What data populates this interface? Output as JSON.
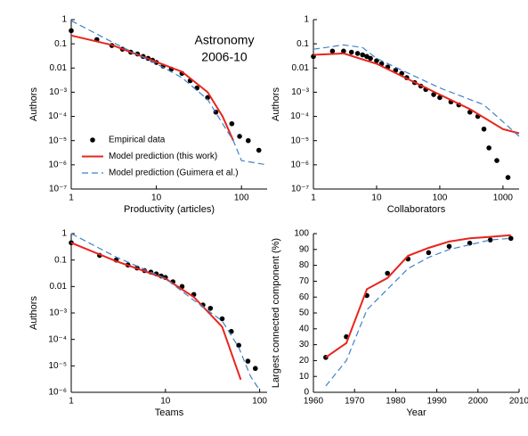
{
  "chart_data": [
    {
      "type": "line",
      "xscale": "log",
      "yscale": "log",
      "annotation": [
        "Astronomy",
        "2006-10"
      ],
      "xlabel": "Productivity (articles)",
      "ylabel": "Authors",
      "xlim": [
        1,
        200
      ],
      "ylim": [
        1e-07,
        1
      ],
      "xticks": [
        1,
        10,
        100
      ],
      "yticks": [
        1,
        0.1,
        0.01,
        {
          "value": 0.001,
          "label": "10⁻³"
        },
        {
          "value": 0.0001,
          "label": "10⁻⁴"
        },
        {
          "value": 1e-05,
          "label": "10⁻⁵"
        },
        {
          "value": 1e-06,
          "label": "10⁻⁶"
        },
        {
          "value": 1e-07,
          "label": "10⁻⁷"
        }
      ],
      "legend": "lower left",
      "series": [
        {
          "name": "Empirical data",
          "type": "scatter",
          "color": "#000000",
          "x": [
            1,
            2,
            3,
            4,
            5,
            6,
            7,
            8,
            9,
            10,
            12,
            15,
            20,
            25,
            30,
            40,
            50,
            77,
            95,
            120,
            160
          ],
          "values": [
            0.35,
            0.15,
            0.085,
            0.06,
            0.045,
            0.038,
            0.03,
            0.025,
            0.021,
            0.017,
            0.012,
            0.009,
            0.006,
            0.003,
            0.0015,
            0.0006,
            0.00015,
            5e-05,
            1.5e-05,
            1e-05,
            4e-06
          ]
        },
        {
          "name": "Model prediction (this work)",
          "type": "line",
          "color": "#e8251c",
          "dash": false,
          "x": [
            1,
            3,
            10,
            20,
            40,
            60,
            80
          ],
          "values": [
            0.22,
            0.09,
            0.018,
            0.007,
            0.001,
            0.0001,
            1e-05
          ]
        },
        {
          "name": "Model prediction (Guimera et al.)",
          "type": "line",
          "color": "#3f82c8",
          "dash": true,
          "x": [
            1,
            3,
            10,
            20,
            40,
            60,
            80,
            100,
            200
          ],
          "values": [
            0.9,
            0.12,
            0.015,
            0.004,
            0.0005,
            5e-05,
            1e-05,
            1.5e-06,
            1e-06
          ]
        }
      ]
    },
    {
      "type": "line",
      "xscale": "log",
      "yscale": "log",
      "xlabel": "Collaborators",
      "ylabel": "Authors",
      "xlim": [
        1,
        1800
      ],
      "ylim": [
        1e-07,
        1
      ],
      "xticks": [
        1,
        10,
        100,
        1000
      ],
      "yticks": [
        1,
        0.1,
        0.01,
        {
          "value": 0.001,
          "label": "10⁻³"
        },
        {
          "value": 0.0001,
          "label": "10⁻⁴"
        },
        {
          "value": 1e-05,
          "label": "10⁻⁵"
        },
        {
          "value": 1e-06,
          "label": "10⁻⁶"
        },
        {
          "value": 1e-07,
          "label": "10⁻⁷"
        }
      ],
      "series": [
        {
          "type": "scatter",
          "color": "#000000",
          "x": [
            1,
            2,
            3,
            4,
            5,
            6,
            7,
            8,
            10,
            12,
            15,
            20,
            25,
            30,
            40,
            50,
            60,
            80,
            100,
            150,
            200,
            300,
            400,
            500,
            600,
            800,
            1200
          ],
          "values": [
            0.03,
            0.05,
            0.05,
            0.045,
            0.04,
            0.035,
            0.03,
            0.025,
            0.02,
            0.015,
            0.011,
            0.008,
            0.006,
            0.004,
            0.0025,
            0.0018,
            0.0013,
            0.0008,
            0.0006,
            0.0004,
            0.0003,
            0.00015,
            0.0001,
            3e-05,
            5e-06,
            1.5e-06,
            3e-07
          ]
        },
        {
          "type": "line",
          "color": "#e8251c",
          "dash": false,
          "x": [
            1,
            3,
            10,
            100,
            300,
            1000,
            1800
          ],
          "values": [
            0.035,
            0.04,
            0.015,
            0.0008,
            0.0002,
            3e-05,
            2e-05
          ]
        },
        {
          "type": "line",
          "color": "#3f82c8",
          "dash": true,
          "x": [
            1,
            3,
            6,
            10,
            100,
            500,
            1000,
            1800
          ],
          "values": [
            0.06,
            0.09,
            0.07,
            0.025,
            0.0015,
            0.0003,
            6e-05,
            1.5e-05
          ]
        }
      ]
    },
    {
      "type": "line",
      "xscale": "log",
      "yscale": "log",
      "xlabel": "Teams",
      "ylabel": "Authors",
      "xlim": [
        1,
        120
      ],
      "ylim": [
        1e-06,
        1
      ],
      "xticks": [
        1,
        10,
        100
      ],
      "yticks": [
        1,
        0.1,
        0.01,
        {
          "value": 0.001,
          "label": "10⁻³"
        },
        {
          "value": 0.0001,
          "label": "10⁻⁴"
        },
        {
          "value": 1e-05,
          "label": "10⁻⁵"
        },
        {
          "value": 1e-06,
          "label": "10⁻⁶"
        }
      ],
      "series": [
        {
          "type": "scatter",
          "color": "#000000",
          "x": [
            1,
            2,
            3,
            4,
            5,
            6,
            7,
            8,
            9,
            10,
            12,
            15,
            20,
            25,
            30,
            40,
            50,
            60,
            75,
            90
          ],
          "values": [
            0.45,
            0.15,
            0.1,
            0.065,
            0.05,
            0.04,
            0.035,
            0.03,
            0.025,
            0.022,
            0.015,
            0.01,
            0.005,
            0.002,
            0.0015,
            0.0006,
            0.0002,
            6e-05,
            1.5e-05,
            8e-06
          ]
        },
        {
          "type": "line",
          "color": "#e8251c",
          "dash": false,
          "x": [
            1,
            3,
            10,
            20,
            40,
            63
          ],
          "values": [
            0.45,
            0.09,
            0.02,
            0.004,
            0.0003,
            3e-06
          ]
        },
        {
          "type": "line",
          "color": "#3f82c8",
          "dash": true,
          "x": [
            1,
            3,
            10,
            20,
            40,
            60,
            80,
            100
          ],
          "values": [
            1,
            0.13,
            0.02,
            0.003,
            0.0005,
            5e-05,
            4e-06,
            1.2e-06
          ]
        }
      ]
    },
    {
      "type": "line",
      "xscale": "linear",
      "yscale": "linear",
      "xlabel": "Year",
      "ylabel": "Largest connected component (%)",
      "xlim": [
        1960,
        2010
      ],
      "ylim": [
        0,
        100
      ],
      "xticks": [
        1960,
        1970,
        1980,
        1990,
        2000,
        2010
      ],
      "yticks": [
        0,
        10,
        20,
        30,
        40,
        50,
        60,
        70,
        80,
        90,
        100
      ],
      "series": [
        {
          "type": "scatter",
          "color": "#000000",
          "x": [
            1963,
            1968,
            1973,
            1978,
            1983,
            1988,
            1993,
            1998,
            2003,
            2008
          ],
          "values": [
            22,
            35,
            61,
            75,
            84,
            88,
            92,
            94,
            96,
            97
          ]
        },
        {
          "type": "line",
          "color": "#e8251c",
          "dash": false,
          "x": [
            1963,
            1968,
            1973,
            1978,
            1983,
            1988,
            1993,
            1998,
            2003,
            2008
          ],
          "values": [
            22,
            31,
            65,
            72,
            86,
            91,
            95,
            97,
            98,
            99
          ]
        },
        {
          "type": "line",
          "color": "#3f82c8",
          "dash": true,
          "x": [
            1963,
            1968,
            1973,
            1978,
            1983,
            1988,
            1993,
            1998,
            2003,
            2008
          ],
          "values": [
            4,
            20,
            52,
            65,
            78,
            85,
            90,
            93,
            96,
            97
          ]
        }
      ]
    }
  ]
}
